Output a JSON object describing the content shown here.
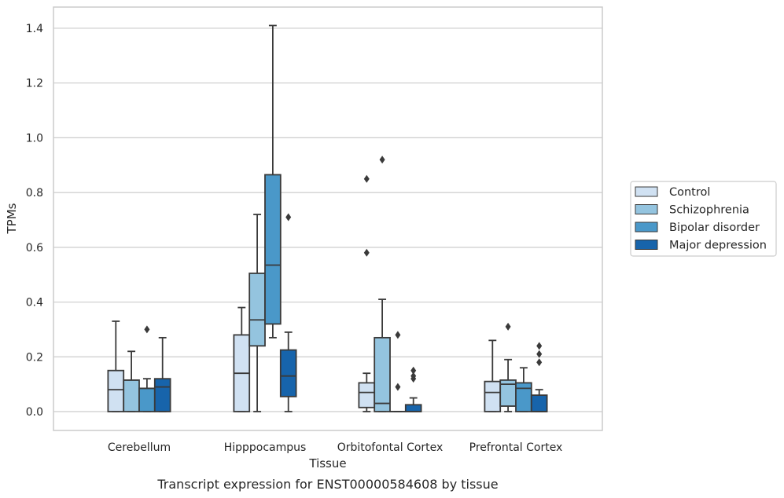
{
  "chart_data": {
    "type": "box",
    "caption": "Transcript expression for ENST00000584608 by tissue",
    "xlabel": "Tissue",
    "ylabel": "TPMs",
    "ylim": [
      -0.07,
      1.48
    ],
    "yticks": [
      0.0,
      0.2,
      0.4,
      0.6,
      0.8,
      1.0,
      1.2,
      1.4
    ],
    "ytick_labels": [
      "0.0",
      "0.2",
      "0.4",
      "0.6",
      "0.8",
      "1.0",
      "1.2",
      "1.4"
    ],
    "grid": "horizontal",
    "legend_position": "right",
    "categories": [
      "Cerebellum",
      "Hipppocampus",
      "Orbitofontal Cortex",
      "Prefrontal Cortex"
    ],
    "series": [
      {
        "name": "Control",
        "color": "#d0e1f2",
        "boxes": [
          {
            "min": 0.0,
            "q1": 0.0,
            "median": 0.08,
            "q3": 0.15,
            "max": 0.33,
            "outliers": []
          },
          {
            "min": 0.0,
            "q1": 0.0,
            "median": 0.14,
            "q3": 0.28,
            "max": 0.38,
            "outliers": []
          },
          {
            "min": 0.0,
            "q1": 0.015,
            "median": 0.07,
            "q3": 0.105,
            "max": 0.14,
            "outliers": [
              0.58,
              0.85
            ]
          },
          {
            "min": 0.0,
            "q1": 0.0,
            "median": 0.07,
            "q3": 0.11,
            "max": 0.26,
            "outliers": []
          }
        ]
      },
      {
        "name": "Schizophrenia",
        "color": "#94c4df",
        "boxes": [
          {
            "min": 0.0,
            "q1": 0.0,
            "median": 0.115,
            "q3": 0.115,
            "max": 0.22,
            "outliers": []
          },
          {
            "min": 0.0,
            "q1": 0.24,
            "median": 0.335,
            "q3": 0.505,
            "max": 0.72,
            "outliers": []
          },
          {
            "min": 0.0,
            "q1": 0.0,
            "median": 0.03,
            "q3": 0.27,
            "max": 0.41,
            "outliers": [
              0.92
            ]
          },
          {
            "min": 0.0,
            "q1": 0.02,
            "median": 0.1,
            "q3": 0.115,
            "max": 0.19,
            "outliers": [
              0.31
            ]
          }
        ]
      },
      {
        "name": "Bipolar disorder",
        "color": "#4a98c9",
        "boxes": [
          {
            "min": 0.0,
            "q1": 0.0,
            "median": 0.085,
            "q3": 0.085,
            "max": 0.12,
            "outliers": [
              0.3
            ]
          },
          {
            "min": 0.27,
            "q1": 0.32,
            "median": 0.535,
            "q3": 0.865,
            "max": 1.41,
            "outliers": []
          },
          {
            "min": 0.0,
            "q1": 0.0,
            "median": 0.0,
            "q3": 0.0,
            "max": 0.0,
            "outliers": [
              0.09,
              0.28
            ]
          },
          {
            "min": 0.0,
            "q1": 0.0,
            "median": 0.085,
            "q3": 0.105,
            "max": 0.16,
            "outliers": []
          }
        ]
      },
      {
        "name": "Major depression",
        "color": "#1764ab",
        "boxes": [
          {
            "min": 0.0,
            "q1": 0.0,
            "median": 0.09,
            "q3": 0.12,
            "max": 0.27,
            "outliers": []
          },
          {
            "min": 0.0,
            "q1": 0.055,
            "median": 0.13,
            "q3": 0.225,
            "max": 0.29,
            "outliers": [
              0.71
            ]
          },
          {
            "min": 0.0,
            "q1": 0.0,
            "median": 0.0,
            "q3": 0.025,
            "max": 0.05,
            "outliers": [
              0.12,
              0.13,
              0.15
            ]
          },
          {
            "min": 0.0,
            "q1": 0.0,
            "median": 0.0,
            "q3": 0.06,
            "max": 0.08,
            "outliers": [
              0.18,
              0.21,
              0.24
            ]
          }
        ]
      }
    ]
  }
}
